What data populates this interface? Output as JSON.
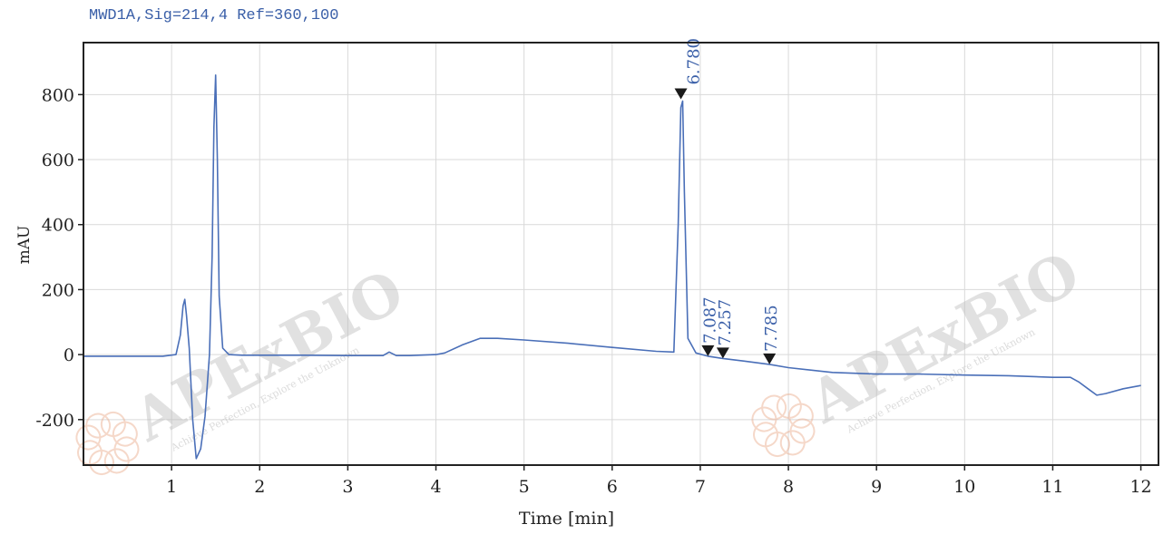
{
  "chart_data": {
    "type": "line",
    "signal_label": "MWD1A,Sig=214,4  Ref=360,100",
    "xlabel": "Time [min]",
    "ylabel": "mAU",
    "xlim": [
      0,
      12.2
    ],
    "ylim": [
      -340,
      960
    ],
    "x_ticks": [
      1,
      2,
      3,
      4,
      5,
      6,
      7,
      8,
      9,
      10,
      11,
      12
    ],
    "y_ticks": [
      -200,
      0,
      200,
      400,
      600,
      800
    ],
    "grid": true,
    "colors": {
      "trace": "#4a6fb8",
      "grid": "#d9d9d9",
      "frame": "#222222",
      "label": "#3a5fa8",
      "marker": "#1a1a1a"
    },
    "series": [
      {
        "x": [
          0,
          0.5,
          0.9,
          1.05,
          1.1,
          1.13,
          1.15,
          1.17,
          1.2,
          1.24,
          1.28,
          1.33,
          1.38,
          1.43,
          1.46,
          1.48,
          1.5,
          1.52,
          1.54,
          1.58,
          1.65,
          1.8,
          2.5,
          3.0,
          3.4,
          3.47,
          3.55,
          3.7,
          4.0,
          4.1,
          4.3,
          4.5,
          4.7,
          5.0,
          5.5,
          6.0,
          6.5,
          6.7,
          6.75,
          6.78,
          6.8,
          6.82,
          6.86,
          6.95,
          7.087,
          7.257,
          7.5,
          7.785,
          8.0,
          8.5,
          9.0,
          9.5,
          10.0,
          10.5,
          11.0,
          11.2,
          11.3,
          11.4,
          11.5,
          11.6,
          11.8,
          12.0
        ],
        "y": [
          -5,
          -5,
          -5,
          0,
          60,
          150,
          170,
          120,
          20,
          -200,
          -320,
          -290,
          -190,
          0,
          300,
          700,
          860,
          600,
          180,
          20,
          0,
          -2,
          -2,
          -3,
          -3,
          8,
          -3,
          -3,
          0,
          5,
          30,
          50,
          50,
          45,
          35,
          22,
          10,
          8,
          400,
          760,
          780,
          500,
          50,
          5,
          -5,
          -12,
          -20,
          -30,
          -40,
          -55,
          -60,
          -60,
          -63,
          -65,
          -70,
          -70,
          -85,
          -105,
          -125,
          -120,
          -105,
          -95
        ]
      }
    ],
    "peaks": [
      {
        "label": "6.780",
        "x": 6.78,
        "y": 780
      },
      {
        "label": "7.087",
        "x": 7.087,
        "y": -5
      },
      {
        "label": "7.257",
        "x": 7.257,
        "y": -12
      },
      {
        "label": "7.785",
        "x": 7.785,
        "y": -30
      }
    ]
  },
  "watermark": {
    "brand": "APExBIO",
    "slogan": "Achieve Perfection, Explore the Unknown"
  }
}
